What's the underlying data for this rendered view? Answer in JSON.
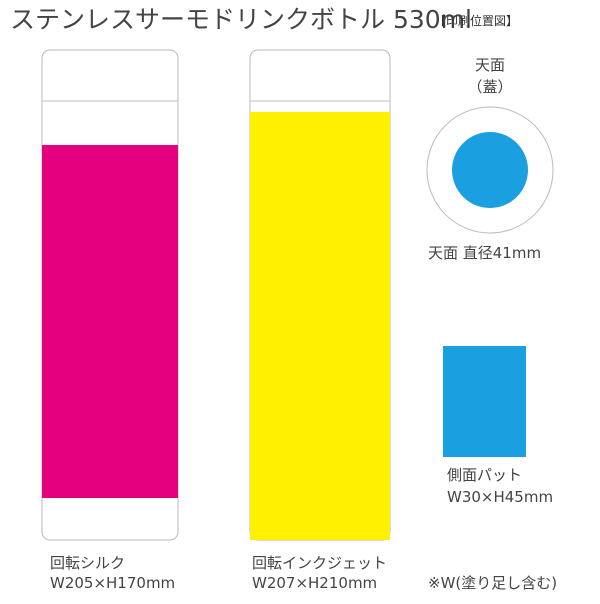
{
  "header": {
    "title": "ステンレスサーモドリンクボトル 530ml",
    "tag": "【印刷位置図】"
  },
  "views": [
    {
      "name": "回転シルク",
      "size": "W205×H170mm"
    },
    {
      "name": "回転インクジェット",
      "size": "W207×H210mm",
      "note": "※W(塗り足し含む)"
    },
    {
      "title": "天面",
      "subtitle": "（蓋）",
      "name": "天面 直径41mm"
    },
    {
      "name": "側面パット",
      "size": "W30×H45mm"
    }
  ]
}
